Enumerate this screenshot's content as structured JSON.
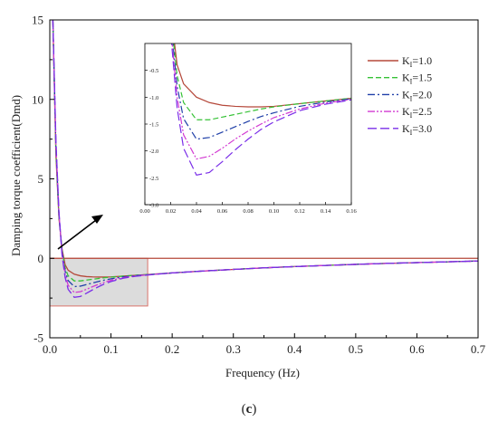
{
  "figure": {
    "caption_open": "(",
    "caption_letter": "c",
    "caption_close": ")"
  },
  "chart_data": [
    {
      "type": "line",
      "xlabel": "Frequency (Hz)",
      "ylabel": "Damping torque coefficient(Dmd)",
      "xlim": [
        0.0,
        0.7
      ],
      "ylim": [
        -5,
        15
      ],
      "xticks": [
        "0.0",
        "0.1",
        "0.2",
        "0.3",
        "0.4",
        "0.5",
        "0.6",
        "0.7"
      ],
      "yticks": [
        "-5",
        "0",
        "5",
        "10",
        "15"
      ],
      "reference_line": {
        "y": 0,
        "color": "#b5483a"
      },
      "highlight_box": {
        "x": [
          0.0,
          0.16
        ],
        "y": [
          -3.0,
          0.0
        ],
        "fill": "#dcdcdc",
        "stroke": "#d9736b"
      },
      "grid": false,
      "series": [
        {
          "name": "K",
          "subscript": "I",
          "value_text": "=1.0",
          "color": "#b5483a",
          "dash": "solid",
          "x": [
            0.005,
            0.01,
            0.015,
            0.02,
            0.025,
            0.03,
            0.04,
            0.05,
            0.06,
            0.07,
            0.08,
            0.09,
            0.1,
            0.12,
            0.14,
            0.16,
            0.2,
            0.25,
            0.3,
            0.35,
            0.4,
            0.45,
            0.5,
            0.55,
            0.6,
            0.65,
            0.7
          ],
          "y": [
            15.0,
            6.5,
            2.5,
            0.6,
            -0.4,
            -0.75,
            -1.0,
            -1.1,
            -1.15,
            -1.17,
            -1.18,
            -1.18,
            -1.17,
            -1.12,
            -1.07,
            -1.02,
            -0.92,
            -0.8,
            -0.7,
            -0.6,
            -0.52,
            -0.45,
            -0.38,
            -0.32,
            -0.27,
            -0.22,
            -0.17
          ]
        },
        {
          "name": "K",
          "subscript": "I",
          "value_text": "=1.5",
          "color": "#36c236",
          "dash": "dash",
          "x": [
            0.005,
            0.01,
            0.015,
            0.02,
            0.025,
            0.03,
            0.04,
            0.05,
            0.06,
            0.07,
            0.08,
            0.09,
            0.1,
            0.12,
            0.14,
            0.16,
            0.2,
            0.25,
            0.3,
            0.35,
            0.4,
            0.45,
            0.5,
            0.55,
            0.6,
            0.65,
            0.7
          ],
          "y": [
            15.0,
            6.8,
            2.6,
            0.5,
            -0.6,
            -1.1,
            -1.42,
            -1.42,
            -1.37,
            -1.32,
            -1.27,
            -1.22,
            -1.18,
            -1.12,
            -1.07,
            -1.02,
            -0.92,
            -0.8,
            -0.7,
            -0.6,
            -0.52,
            -0.45,
            -0.38,
            -0.32,
            -0.27,
            -0.22,
            -0.17
          ]
        },
        {
          "name": "K",
          "subscript": "I",
          "value_text": "=2.0",
          "color": "#1f3fa8",
          "dash": "dashdot",
          "x": [
            0.005,
            0.01,
            0.015,
            0.02,
            0.025,
            0.03,
            0.04,
            0.05,
            0.06,
            0.07,
            0.08,
            0.09,
            0.1,
            0.12,
            0.14,
            0.16,
            0.2,
            0.25,
            0.3,
            0.35,
            0.4,
            0.45,
            0.5,
            0.55,
            0.6,
            0.65,
            0.7
          ],
          "y": [
            15.0,
            7.0,
            2.7,
            0.4,
            -0.8,
            -1.4,
            -1.78,
            -1.75,
            -1.65,
            -1.55,
            -1.45,
            -1.36,
            -1.29,
            -1.17,
            -1.09,
            -1.03,
            -0.92,
            -0.8,
            -0.7,
            -0.6,
            -0.52,
            -0.45,
            -0.38,
            -0.32,
            -0.27,
            -0.22,
            -0.17
          ]
        },
        {
          "name": "K",
          "subscript": "I",
          "value_text": "=2.5",
          "color": "#d23ad2",
          "dash": "dashdotdot",
          "x": [
            0.005,
            0.01,
            0.015,
            0.02,
            0.025,
            0.03,
            0.04,
            0.05,
            0.06,
            0.07,
            0.08,
            0.09,
            0.1,
            0.12,
            0.14,
            0.16,
            0.2,
            0.25,
            0.3,
            0.35,
            0.4,
            0.45,
            0.5,
            0.55,
            0.6,
            0.65,
            0.7
          ],
          "y": [
            15.0,
            7.2,
            2.8,
            0.3,
            -1.0,
            -1.7,
            -2.15,
            -2.1,
            -1.95,
            -1.78,
            -1.63,
            -1.5,
            -1.38,
            -1.22,
            -1.11,
            -1.04,
            -0.92,
            -0.8,
            -0.7,
            -0.6,
            -0.52,
            -0.45,
            -0.38,
            -0.32,
            -0.27,
            -0.22,
            -0.17
          ]
        },
        {
          "name": "K",
          "subscript": "I",
          "value_text": "=3.0",
          "color": "#7a2ee8",
          "dash": "longdash",
          "x": [
            0.005,
            0.01,
            0.015,
            0.02,
            0.025,
            0.03,
            0.04,
            0.05,
            0.06,
            0.07,
            0.08,
            0.09,
            0.1,
            0.12,
            0.14,
            0.16,
            0.2,
            0.25,
            0.3,
            0.35,
            0.4,
            0.45,
            0.5,
            0.55,
            0.6,
            0.65,
            0.7
          ],
          "y": [
            15.0,
            7.4,
            2.9,
            0.2,
            -1.2,
            -1.95,
            -2.45,
            -2.4,
            -2.2,
            -1.98,
            -1.78,
            -1.6,
            -1.46,
            -1.25,
            -1.13,
            -1.05,
            -0.92,
            -0.8,
            -0.7,
            -0.6,
            -0.52,
            -0.45,
            -0.38,
            -0.32,
            -0.27,
            -0.22,
            -0.17
          ]
        }
      ]
    },
    {
      "type": "line",
      "role": "inset",
      "xlim": [
        0.0,
        0.16
      ],
      "ylim": [
        -3.0,
        0.0
      ],
      "xticks": [
        "0.00",
        "0.02",
        "0.04",
        "0.06",
        "0.08",
        "0.10",
        "0.12",
        "0.14",
        "0.16"
      ],
      "yticks": [
        "-0.5",
        "-1.0",
        "-1.5",
        "-2.0",
        "-2.5",
        "-3.0"
      ],
      "series_ref": "same as main chart series"
    }
  ]
}
